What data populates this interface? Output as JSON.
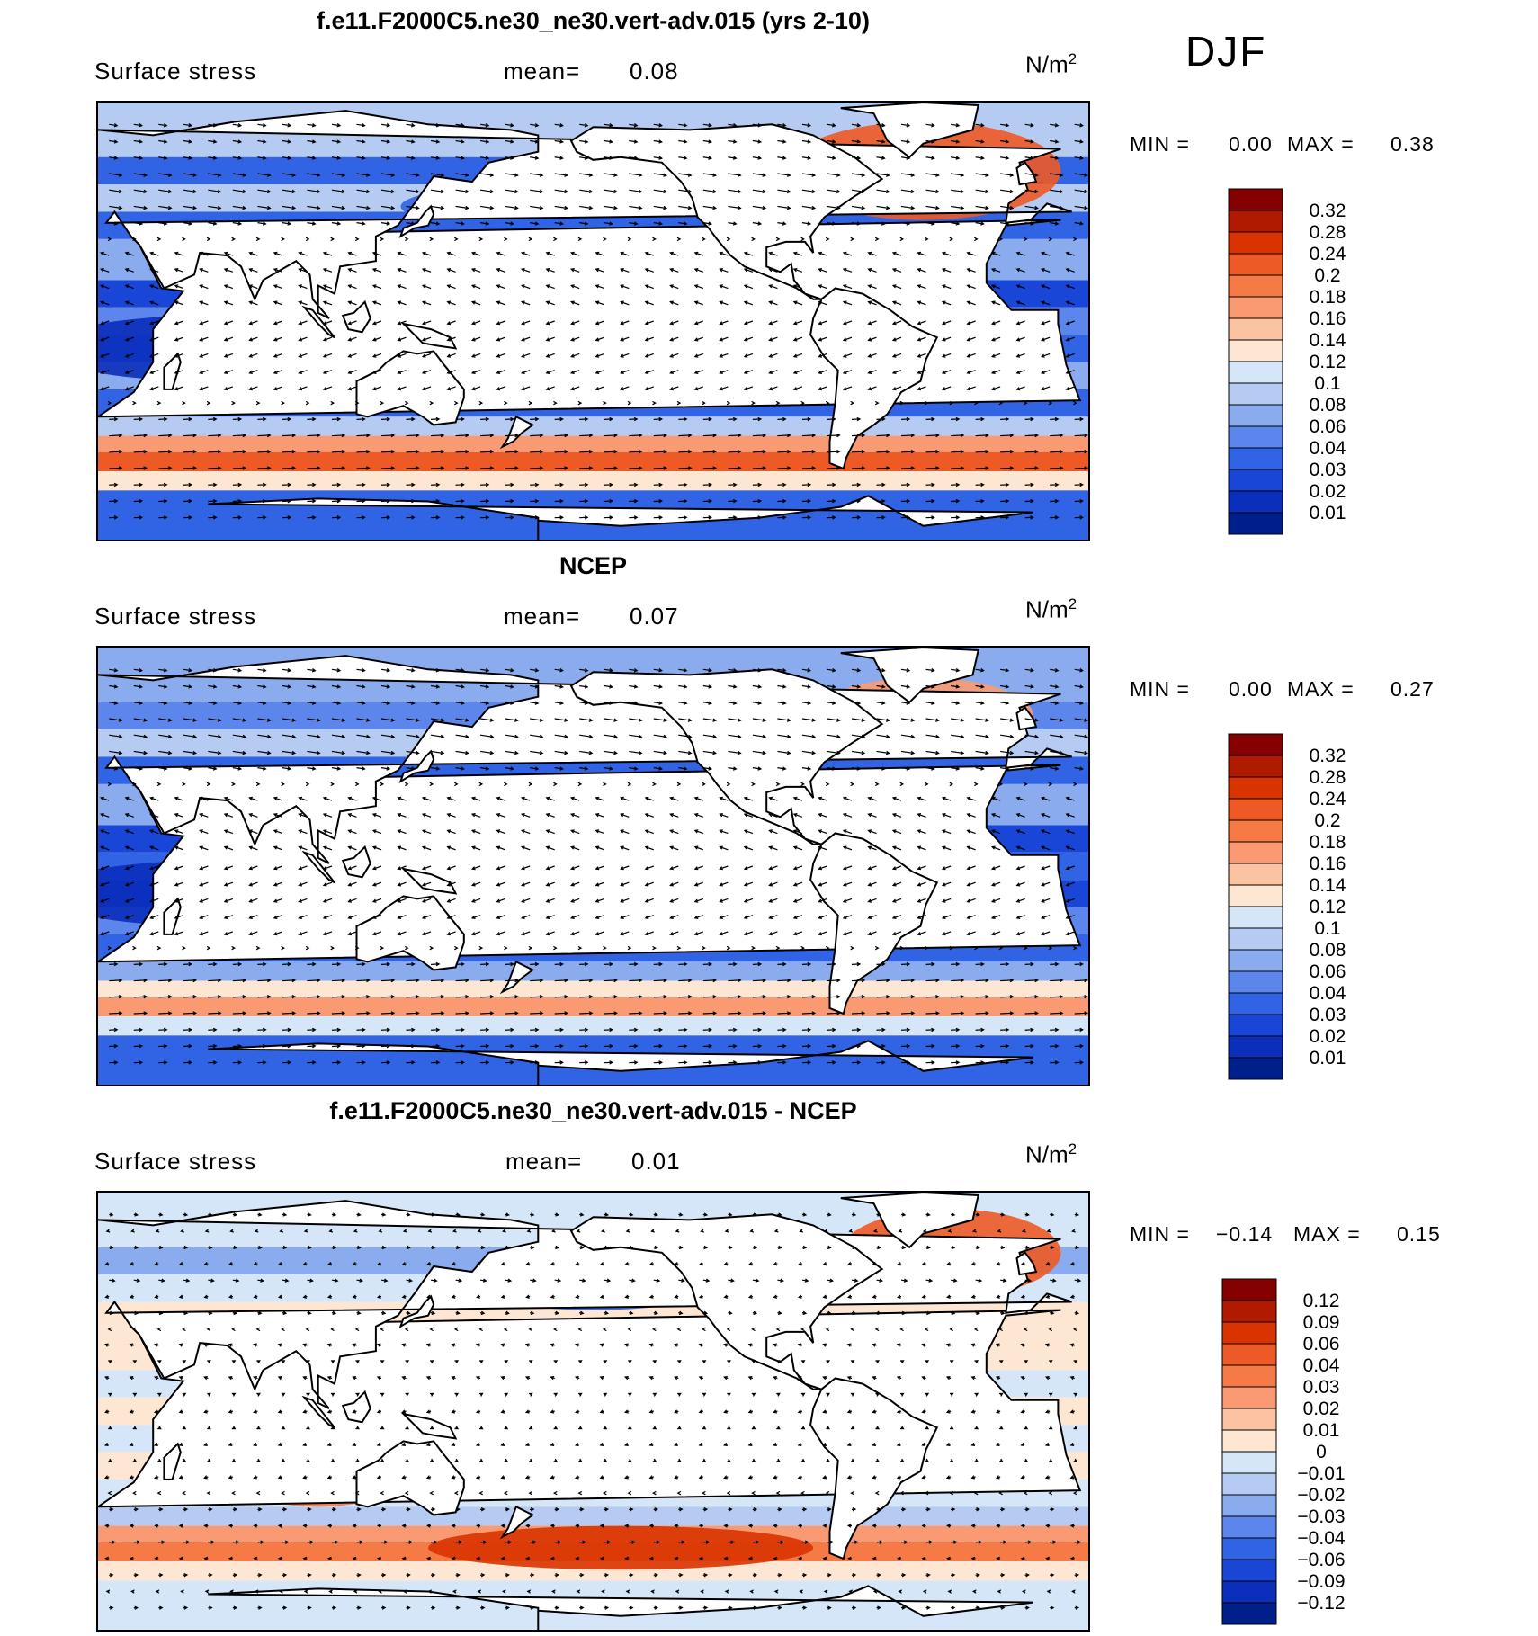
{
  "season": "DJF",
  "panels": [
    {
      "id": "model",
      "title": "f.e11.F2000C5.ne30_ne30.vert-adv.015 (yrs 2-10)",
      "variable": "Surface stress",
      "mean_label": "mean=",
      "mean_value": "0.08",
      "units": "N/m",
      "units_exp": "2",
      "min_label": "MIN =",
      "min_value": "0.00",
      "max_label": "MAX =",
      "max_value": "0.38",
      "colorbar_labels": [
        "0.32",
        "0.28",
        "0.24",
        "0.2",
        "0.18",
        "0.16",
        "0.14",
        "0.12",
        "0.1",
        "0.08",
        "0.06",
        "0.04",
        "0.03",
        "0.02",
        "0.01"
      ],
      "colorbar_colors": [
        "#850000",
        "#b01a00",
        "#d93300",
        "#ee5a25",
        "#f57a45",
        "#f99a72",
        "#fcc3a2",
        "#fde6d2",
        "#d6e6f9",
        "#b5cbf2",
        "#8aacef",
        "#5c86ec",
        "#3064e5",
        "#1a46d8",
        "#0b2ebb",
        "#001f8a"
      ],
      "mean_level": 0.08
    },
    {
      "id": "obs",
      "title": "NCEP",
      "variable": "Surface stress",
      "mean_label": "mean=",
      "mean_value": "0.07",
      "units": "N/m",
      "units_exp": "2",
      "min_label": "MIN =",
      "min_value": "0.00",
      "max_label": "MAX =",
      "max_value": "0.27",
      "colorbar_labels": [
        "0.32",
        "0.28",
        "0.24",
        "0.2",
        "0.18",
        "0.16",
        "0.14",
        "0.12",
        "0.1",
        "0.08",
        "0.06",
        "0.04",
        "0.03",
        "0.02",
        "0.01"
      ],
      "colorbar_colors": [
        "#850000",
        "#b01a00",
        "#d93300",
        "#ee5a25",
        "#f57a45",
        "#f99a72",
        "#fcc3a2",
        "#fde6d2",
        "#d6e6f9",
        "#b5cbf2",
        "#8aacef",
        "#5c86ec",
        "#3064e5",
        "#1a46d8",
        "#0b2ebb",
        "#001f8a"
      ],
      "mean_level": 0.07
    },
    {
      "id": "diff",
      "title": "f.e11.F2000C5.ne30_ne30.vert-adv.015 - NCEP",
      "variable": "Surface stress",
      "mean_label": "mean=",
      "mean_value": "0.01",
      "units": "N/m",
      "units_exp": "2",
      "min_label": "MIN =",
      "min_value": "−0.14",
      "max_label": "MAX =",
      "max_value": "0.15",
      "colorbar_labels": [
        "0.12",
        "0.09",
        "0.06",
        "0.04",
        "0.03",
        "0.02",
        "0.01",
        "0",
        "−0.01",
        "−0.02",
        "−0.03",
        "−0.04",
        "−0.06",
        "−0.09",
        "−0.12"
      ],
      "colorbar_colors": [
        "#850000",
        "#b01a00",
        "#d93300",
        "#ee5a25",
        "#f57a45",
        "#f99a72",
        "#fcc3a2",
        "#fde6d2",
        "#d6e6f9",
        "#b5cbf2",
        "#8aacef",
        "#5c86ec",
        "#3064e5",
        "#1a46d8",
        "#0b2ebb",
        "#001f8a"
      ],
      "mean_level": 0.01
    }
  ],
  "chart_data": [
    {
      "type": "heatmap",
      "title": "f.e11.F2000C5.ne30_ne30.vert-adv.015 (yrs 2-10)",
      "subtitle": "Surface stress (DJF)",
      "units": "N/m^2",
      "mean": 0.08,
      "min": 0.0,
      "max": 0.38,
      "levels": [
        0.01,
        0.02,
        0.03,
        0.04,
        0.06,
        0.08,
        0.1,
        0.12,
        0.14,
        0.16,
        0.18,
        0.2,
        0.24,
        0.28,
        0.32
      ],
      "features": "global map with wind stress vectors; maxima (~0.2-0.3) in Southern Ocean westerlies near 50S and North Atlantic"
    },
    {
      "type": "heatmap",
      "title": "NCEP",
      "subtitle": "Surface stress (DJF)",
      "units": "N/m^2",
      "mean": 0.07,
      "min": 0.0,
      "max": 0.27,
      "levels": [
        0.01,
        0.02,
        0.03,
        0.04,
        0.06,
        0.08,
        0.1,
        0.12,
        0.14,
        0.16,
        0.18,
        0.2,
        0.24,
        0.28,
        0.32
      ],
      "features": "global map with wind stress vectors; maxima in Southern Ocean and North Atlantic"
    },
    {
      "type": "heatmap",
      "title": "f.e11.F2000C5.ne30_ne30.vert-adv.015 - NCEP",
      "subtitle": "Surface stress difference (DJF)",
      "units": "N/m^2",
      "mean": 0.01,
      "min": -0.14,
      "max": 0.15,
      "levels": [
        -0.12,
        -0.09,
        -0.06,
        -0.04,
        -0.03,
        -0.02,
        -0.01,
        0,
        0.01,
        0.02,
        0.03,
        0.04,
        0.06,
        0.09,
        0.12
      ],
      "features": "positive differences over Southern Ocean and North Atlantic; negative over North Pacific"
    }
  ]
}
